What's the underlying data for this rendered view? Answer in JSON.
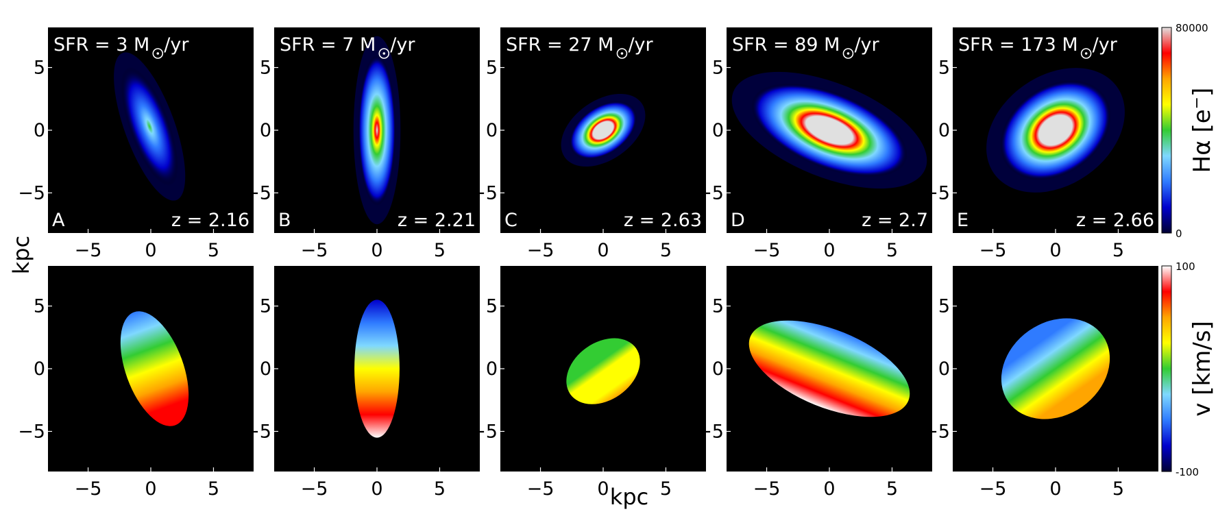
{
  "chart_data": {
    "type": "heatmap",
    "description_rows": [
      "H-alpha intensity",
      "velocity"
    ],
    "shared_xlabel": "kpc",
    "shared_ylabel": "kpc",
    "xlim": [
      -8.2,
      8.2
    ],
    "ylim": [
      -8.2,
      8.2
    ],
    "ticks": [
      -5,
      0,
      5
    ],
    "tick_labels": [
      "−5",
      "0",
      "5"
    ],
    "panels": [
      {
        "label": "A",
        "sfr_text": "SFR = 3 M",
        "sfr_unit": "/yr",
        "sfr": 3,
        "z_text": "z = 2.16",
        "z": 2.16,
        "shape": {
          "cx": -0.1,
          "cy": 0.3,
          "rx": 1.6,
          "ry": 5.0,
          "angle": 20
        },
        "velocity_shape": {
          "cx": 0.3,
          "cy": 0.0,
          "rx": 2.3,
          "ry": 4.8,
          "angle": 20,
          "vmin": -45,
          "vmax": 85
        }
      },
      {
        "label": "B",
        "sfr_text": "SFR = 7 M",
        "sfr_unit": "/yr",
        "sfr": 7,
        "z_text": "z = 2.21",
        "z": 2.21,
        "shape": {
          "cx": 0.0,
          "cy": 0.0,
          "rx": 1.5,
          "ry": 6.0,
          "angle": 0
        },
        "velocity_shape": {
          "cx": 0.0,
          "cy": 0.0,
          "rx": 1.8,
          "ry": 5.5,
          "angle": 0,
          "vmin": -70,
          "vmax": 95
        }
      },
      {
        "label": "C",
        "sfr_text": "SFR = 27 M",
        "sfr_unit": "/yr",
        "sfr": 27,
        "z_text": "z = 2.63",
        "z": 2.63,
        "shape": {
          "cx": 0.0,
          "cy": 0.0,
          "rx": 3.0,
          "ry": 1.9,
          "angle": 35
        },
        "velocity_shape": {
          "cx": 0.0,
          "cy": -0.2,
          "rx": 3.2,
          "ry": 2.3,
          "angle": 35,
          "vmin": -10,
          "vmax": 45
        }
      },
      {
        "label": "D",
        "sfr_text": "SFR = 89 M",
        "sfr_unit": "/yr",
        "sfr": 89,
        "z_text": "z = 2.7",
        "z": 2.7,
        "shape": {
          "cx": 0.0,
          "cy": 0.0,
          "rx": 6.6,
          "ry": 3.0,
          "angle": -22
        },
        "velocity_shape": {
          "cx": 0.0,
          "cy": 0.0,
          "rx": 6.8,
          "ry": 3.1,
          "angle": -22,
          "vmin": -55,
          "vmax": 90
        }
      },
      {
        "label": "E",
        "sfr_text": "SFR = 173 M",
        "sfr_unit": "/yr",
        "sfr": 173,
        "z_text": "z = 2.66",
        "z": 2.66,
        "shape": {
          "cx": 0.0,
          "cy": 0.0,
          "rx": 4.8,
          "ry": 3.5,
          "angle": 35
        },
        "velocity_shape": {
          "cx": 0.0,
          "cy": 0.0,
          "rx": 4.6,
          "ry": 3.7,
          "angle": 35,
          "vmin": -60,
          "vmax": 60
        }
      }
    ],
    "colorbars": [
      {
        "label_main": "Hα [e",
        "label_sup": "−",
        "label_end": "]",
        "min_label": "0",
        "max_label": "80000",
        "min": 0,
        "max": 80000,
        "colors": [
          "#000033",
          "#0000cc",
          "#2f7bff",
          "#7fd8ff",
          "#33cc33",
          "#ffff00",
          "#ffa500",
          "#ff0000",
          "#e0e0e0"
        ]
      },
      {
        "label_main": "v [km/s]",
        "label_sup": "",
        "label_end": "",
        "min_label": "-100",
        "max_label": "100",
        "min": -100,
        "max": 100,
        "colors": [
          "#000033",
          "#0000cc",
          "#2f7bff",
          "#7fd8ff",
          "#33cc33",
          "#ffff00",
          "#ffa500",
          "#ff0000",
          "#ffffff"
        ]
      }
    ]
  }
}
